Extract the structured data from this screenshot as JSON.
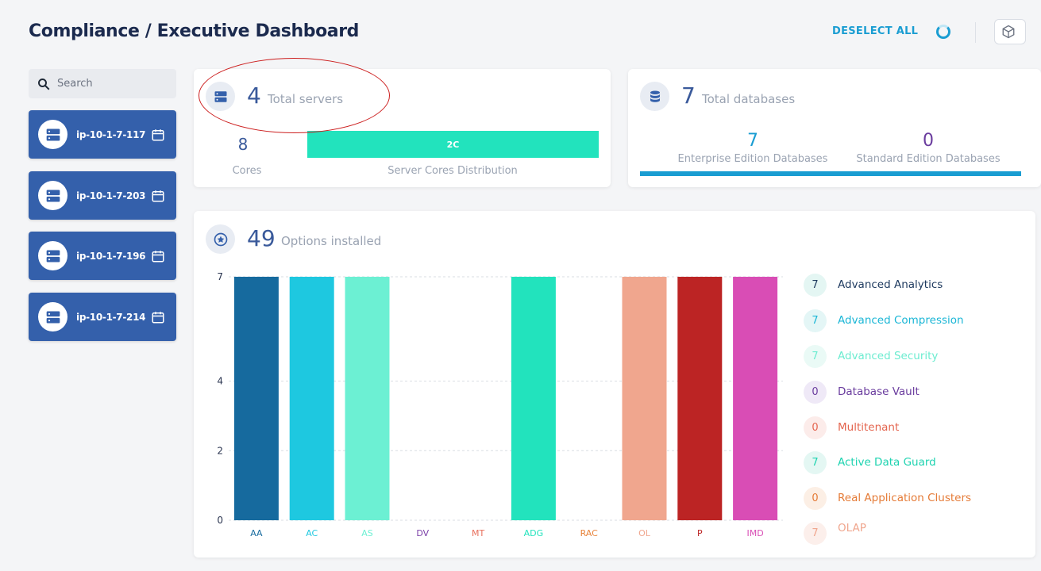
{
  "header": {
    "title": "Compliance / Executive Dashboard",
    "deselect_label": "DESELECT ALL"
  },
  "search": {
    "placeholder": "Search"
  },
  "servers": [
    {
      "name": "ip-10-1-7-117"
    },
    {
      "name": "ip-10-1-7-203"
    },
    {
      "name": "ip-10-1-7-196"
    },
    {
      "name": "ip-10-1-7-214"
    }
  ],
  "servers_card": {
    "total": "4",
    "total_label": "Total servers",
    "cores": "8",
    "cores_label": "Cores",
    "distribution_segment": "2C",
    "distribution_label": "Server Cores Distribution"
  },
  "databases_card": {
    "total": "7",
    "total_label": "Total databases",
    "enterprise_count": "7",
    "enterprise_label": "Enterprise Edition Databases",
    "standard_count": "0",
    "standard_label": "Standard Edition Databases"
  },
  "options_card": {
    "total": "49",
    "total_label": "Options installed"
  },
  "colors": {
    "primary": "#3460ab",
    "accent": "#1a9dd2",
    "teal": "#22e3bd"
  },
  "chart_data": {
    "type": "bar",
    "categories": [
      "AA",
      "AC",
      "AS",
      "DV",
      "MT",
      "ADG",
      "RAC",
      "OL",
      "P",
      "IMD"
    ],
    "values": [
      7,
      7,
      7,
      0,
      0,
      7,
      0,
      7,
      7,
      7
    ],
    "colors": [
      "#166a9e",
      "#1ec8e0",
      "#6cf0d3",
      "#7b3fa8",
      "#e8705d",
      "#22e3bd",
      "#e8833a",
      "#f0a68e",
      "#bc2424",
      "#d94db5"
    ],
    "ylim": [
      0,
      7
    ],
    "yticks": [
      "0",
      "2",
      "4",
      "7"
    ],
    "grid": true
  },
  "legend": [
    {
      "count": "7",
      "label": "Advanced Analytics",
      "color": "#1e3a5f",
      "bg": "#e4f6f3"
    },
    {
      "count": "7",
      "label": "Advanced Compression",
      "color": "#1ab6d6",
      "bg": "#e4f6f6"
    },
    {
      "count": "7",
      "label": "Advanced Security",
      "color": "#6cecd0",
      "bg": "#eafaf6"
    },
    {
      "count": "0",
      "label": "Database Vault",
      "color": "#6a3c9e",
      "bg": "#efe9f7"
    },
    {
      "count": "0",
      "label": "Multitenant",
      "color": "#e4654f",
      "bg": "#fcecea"
    },
    {
      "count": "7",
      "label": "Active Data Guard",
      "color": "#1ed3b0",
      "bg": "#e4f7f3"
    },
    {
      "count": "0",
      "label": "Real Application Clusters",
      "color": "#e57b37",
      "bg": "#fcefe5"
    },
    {
      "count": "7",
      "label": "OLAP",
      "color": "#f0a68e",
      "bg": "#fcefeb"
    }
  ]
}
